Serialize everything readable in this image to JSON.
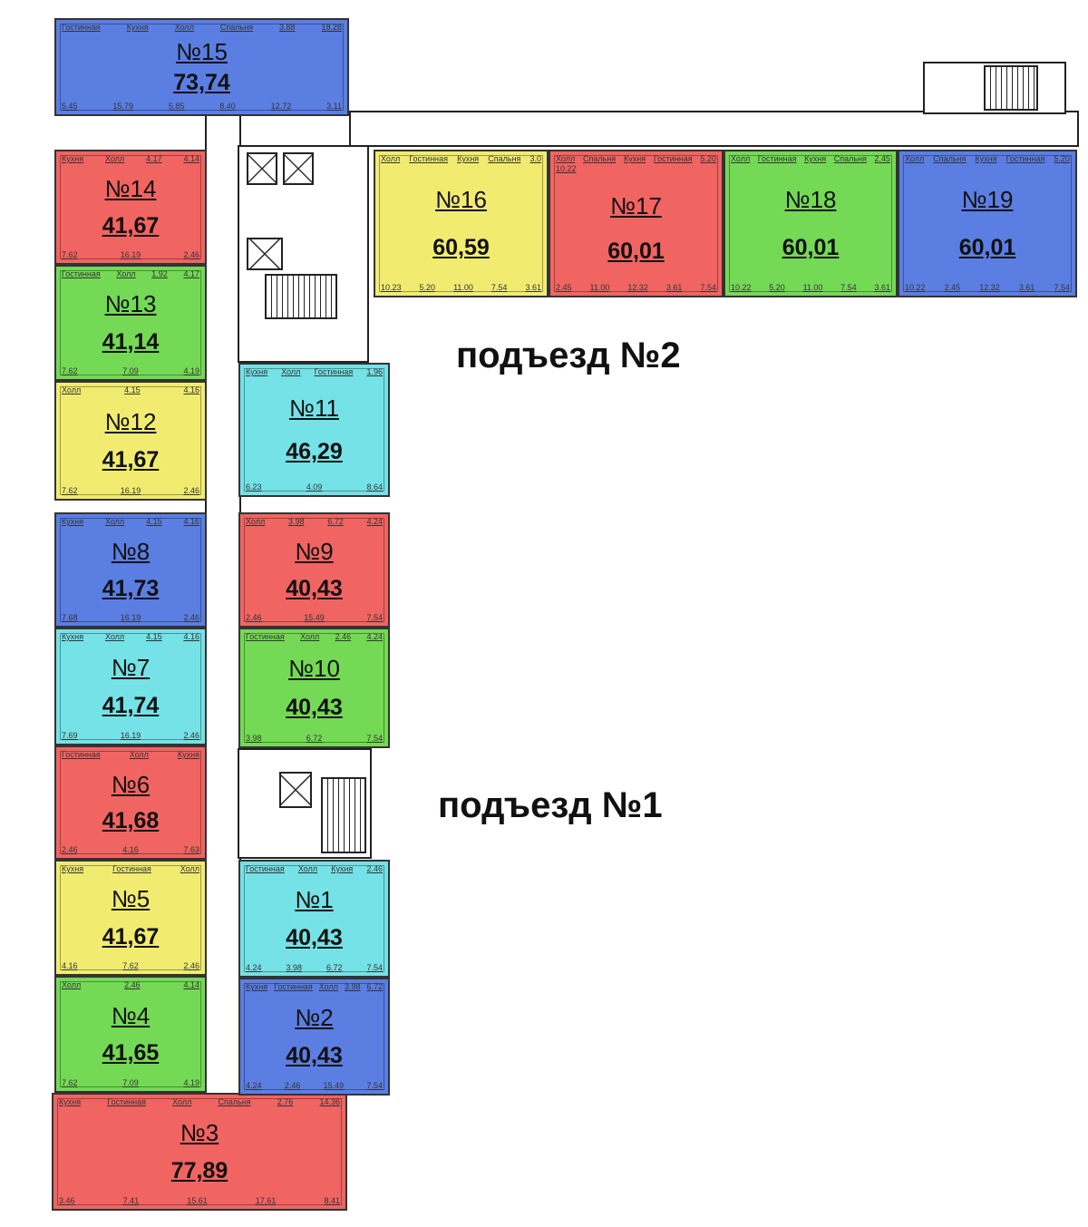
{
  "entrances": {
    "e1": "подъезд №1",
    "e2": "подъезд №2"
  },
  "colors": {
    "blue": "#5b7ee3",
    "red": "#f06462",
    "green": "#74d955",
    "yellow": "#f1ec70",
    "cyan": "#74e2e6"
  },
  "apartments": [
    {
      "num": "№15",
      "area": "73,74",
      "color": "blue",
      "rooms": [
        "Гостинная",
        "Кухня",
        "Холл",
        "Спальня",
        "3.88",
        "18.28",
        "5.45",
        "15.79",
        "5.85",
        "8.40",
        "12.72",
        "3.11"
      ]
    },
    {
      "num": "№14",
      "area": "41,67",
      "color": "red",
      "rooms": [
        "Кухня",
        "Холл",
        "4.17",
        "4.14",
        "7.62",
        "16.19",
        "2.46"
      ]
    },
    {
      "num": "№13",
      "area": "41,14",
      "color": "green",
      "rooms": [
        "Гостинная",
        "Холл",
        "1.92",
        "4.17",
        "7.62",
        "7.09",
        "4.19"
      ]
    },
    {
      "num": "№12",
      "area": "41,67",
      "color": "yellow",
      "rooms": [
        "Холл",
        "4.15",
        "4.16",
        "7.62",
        "16.19",
        "2.46"
      ]
    },
    {
      "num": "№8",
      "area": "41,73",
      "color": "blue",
      "rooms": [
        "Кухня",
        "Холл",
        "4.15",
        "4.16",
        "7.68",
        "16.19",
        "2.46"
      ]
    },
    {
      "num": "№7",
      "area": "41,74",
      "color": "cyan",
      "rooms": [
        "Кухня",
        "Холл",
        "4.15",
        "4.16",
        "7.69",
        "16.19",
        "2.46"
      ]
    },
    {
      "num": "№6",
      "area": "41,68",
      "color": "red",
      "rooms": [
        "Гостинная",
        "Холл",
        "Кухня",
        "2.46",
        "4.16",
        "7.63"
      ]
    },
    {
      "num": "№5",
      "area": "41,67",
      "color": "yellow",
      "rooms": [
        "Кухня",
        "Гостинная",
        "Холл",
        "4.16",
        "7.62",
        "2.46"
      ]
    },
    {
      "num": "№4",
      "area": "41,65",
      "color": "green",
      "rooms": [
        "Холл",
        "2.46",
        "4.14",
        "7.62",
        "7.09",
        "4.19"
      ]
    },
    {
      "num": "№3",
      "area": "77,89",
      "color": "red",
      "rooms": [
        "Кухня",
        "Гостинная",
        "Холл",
        "Спальня",
        "2.76",
        "14.36",
        "3.46",
        "7.41",
        "15.61",
        "17.61",
        "8.41"
      ]
    },
    {
      "num": "№11",
      "area": "46,29",
      "color": "cyan",
      "rooms": [
        "Кухня",
        "Холл",
        "Гостинная",
        "1.96",
        "6.23",
        "4.09",
        "8.64"
      ]
    },
    {
      "num": "№9",
      "area": "40,43",
      "color": "red",
      "rooms": [
        "Холл",
        "3.98",
        "6.72",
        "4.24",
        "2.46",
        "15.49",
        "7.54"
      ]
    },
    {
      "num": "№10",
      "area": "40,43",
      "color": "green",
      "rooms": [
        "Гостинная",
        "Холл",
        "2.46",
        "4.24",
        "3.98",
        "6.72",
        "7.54"
      ]
    },
    {
      "num": "№1",
      "area": "40,43",
      "color": "cyan",
      "rooms": [
        "Гостинная",
        "Холл",
        "Кухня",
        "2.46",
        "4.24",
        "3.98",
        "6.72",
        "7.54"
      ]
    },
    {
      "num": "№2",
      "area": "40,43",
      "color": "blue",
      "rooms": [
        "Кухня",
        "Гостинная",
        "Холл",
        "3.98",
        "6.72",
        "4.24",
        "2.46",
        "15.49",
        "7.54"
      ]
    },
    {
      "num": "№16",
      "area": "60,59",
      "color": "yellow",
      "rooms": [
        "Холл",
        "Гостинная",
        "Кухня",
        "Спальня",
        "3.0",
        "10.23",
        "5.20",
        "11.00",
        "7.54",
        "3.61"
      ]
    },
    {
      "num": "№17",
      "area": "60,01",
      "color": "red",
      "rooms": [
        "Холл",
        "Спальня",
        "Кухня",
        "Гостинная",
        "5.20",
        "10.22",
        "2.45",
        "11.00",
        "12.32",
        "3.61",
        "7.54"
      ]
    },
    {
      "num": "№18",
      "area": "60,01",
      "color": "green",
      "rooms": [
        "Холл",
        "Гостинная",
        "Кухня",
        "Спальня",
        "2.45",
        "10.22",
        "5.20",
        "11.00",
        "7.54",
        "3.61"
      ]
    },
    {
      "num": "№19",
      "area": "60,01",
      "color": "blue",
      "rooms": [
        "Холл",
        "Спальня",
        "Кухня",
        "Гостинная",
        "5.20",
        "10.22",
        "2.45",
        "12.32",
        "3.61",
        "7.54"
      ]
    }
  ]
}
